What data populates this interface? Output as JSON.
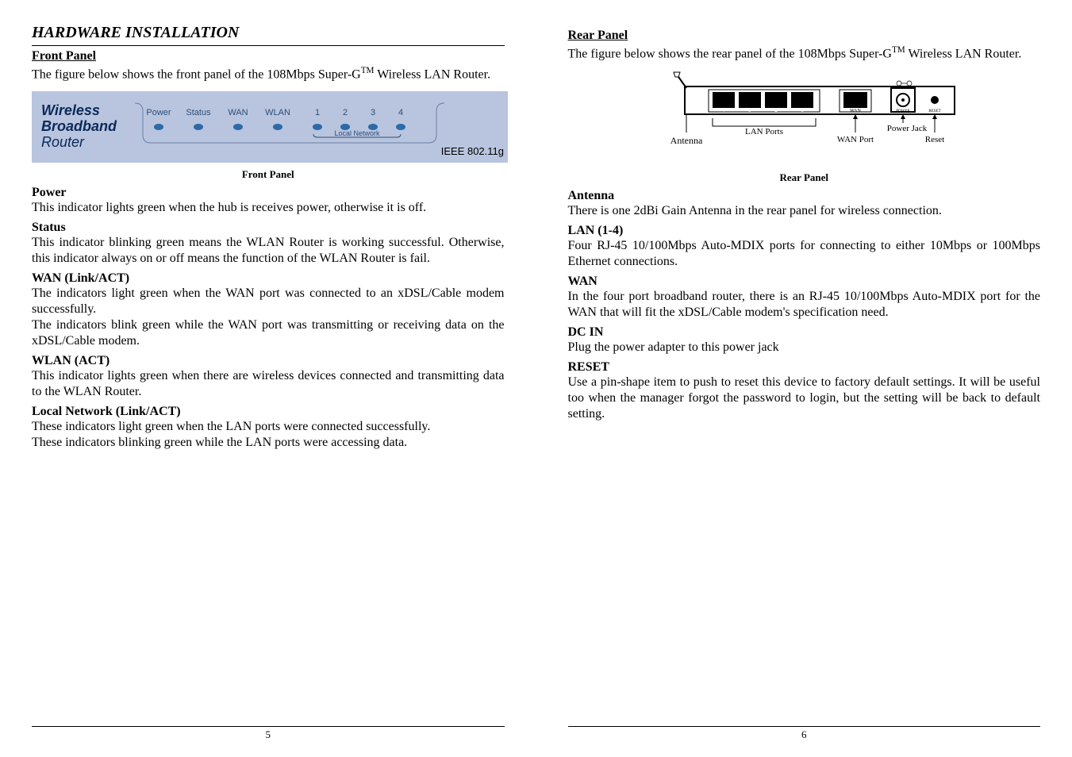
{
  "doc": {
    "title": "HARDWARE INSTALLATION",
    "page_left_num": "5",
    "page_right_num": "6"
  },
  "left": {
    "front_panel_head": "Front Panel",
    "front_panel_intro_pre": "The figure below shows the front panel of the 108Mbps Super-G",
    "front_panel_intro_sup": "TM",
    "front_panel_intro_post": " Wireless LAN Router.",
    "front_panel_caption": "Front Panel",
    "front_panel_graphic": {
      "bg_color": "#b9c4de",
      "title_line1": "Wireless",
      "title_line2": "Broadband",
      "title_line3": "Router",
      "title_color": "#0a2a5a",
      "title_font": "italic",
      "labels": [
        "Power",
        "Status",
        "WAN",
        "WLAN",
        "1",
        "2",
        "3",
        "4"
      ],
      "label_color": "#2c4f7a",
      "led_color": "#2c6aa8",
      "local_net_label": "Local Network",
      "ieee_label": "IEEE 802.11g"
    },
    "sections": [
      {
        "head": "Power",
        "body": "This indicator lights green when the hub is receives power, otherwise it is off."
      },
      {
        "head": "Status",
        "body": "This indicator blinking green means the WLAN Router is working successful. Otherwise, this indicator always on or off means the function of the WLAN Router is fail."
      },
      {
        "head": "WAN (Link/ACT)",
        "body": "The indicators light green when the WAN port was connected to an xDSL/Cable modem successfully."
      },
      {
        "head": "",
        "body": "The indicators blink green while the WAN port was transmitting or receiving data on the xDSL/Cable modem."
      },
      {
        "head": "WLAN (ACT)",
        "body": "This indicator lights green when there are wireless devices connected and transmitting data to the WLAN Router."
      },
      {
        "head": "Local Network (Link/ACT)",
        "body": "These indicators light green when the LAN ports were connected successfully."
      },
      {
        "head": "",
        "body": "These indicators blinking green while the LAN ports were accessing data."
      }
    ]
  },
  "right": {
    "rear_panel_head": "Rear Panel",
    "rear_panel_intro_pre": "The figure below shows the rear panel of the 108Mbps Super-G",
    "rear_panel_intro_sup": "TM",
    "rear_panel_intro_post": " Wireless LAN Router.",
    "rear_panel_caption": "Rear Panel",
    "rear_panel_graphic": {
      "antenna_label": "Antenna",
      "lan_ports_label": "LAN Ports",
      "wan_port_label": "WAN Port",
      "power_jack_label": "Power Jack",
      "reset_label": "Reset",
      "port_numbers": [
        "4",
        "3",
        "2",
        "1"
      ],
      "wan_text": "WAN",
      "power_text": "POWER",
      "reset_text": "RESET",
      "outline_color": "#000000",
      "fill_color": "#ffffff"
    },
    "sections": [
      {
        "head": "Antenna",
        "body": "There is one 2dBi Gain Antenna in the rear panel for wireless connection."
      },
      {
        "head": "LAN (1-4)",
        "body": "Four RJ-45 10/100Mbps Auto-MDIX ports for connecting to either 10Mbps or 100Mbps Ethernet connections."
      },
      {
        "head": "WAN",
        "body": "In the four port broadband router, there is an RJ-45 10/100Mbps Auto-MDIX port for the WAN that will fit the xDSL/Cable modem's specification need."
      },
      {
        "head": "DC IN",
        "body": "Plug the power adapter to this power jack"
      },
      {
        "head": "RESET",
        "body": "Use a pin-shape item to push to reset this device to factory default settings. It will be useful too when the manager forgot the password to login, but the setting will be back to default setting."
      }
    ]
  }
}
